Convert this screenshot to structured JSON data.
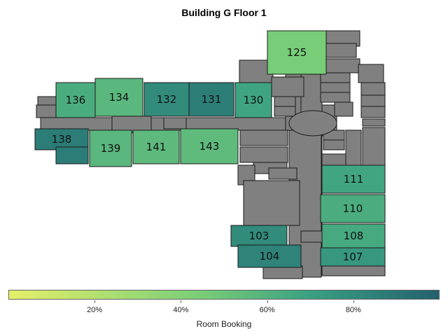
{
  "title": "Building G Floor 1",
  "colors": {
    "wall": "#808080",
    "outline": "#1a1a1a",
    "scale_low": "#e5f06a",
    "scale_mid": "#5cc07a",
    "scale_high": "#22616e"
  },
  "rooms": [
    {
      "id": "125",
      "label": "125",
      "booking": 0.45
    },
    {
      "id": "136",
      "label": "136",
      "booking": 0.63
    },
    {
      "id": "134",
      "label": "134",
      "booking": 0.57
    },
    {
      "id": "132",
      "label": "132",
      "booking": 0.8
    },
    {
      "id": "131",
      "label": "131",
      "booking": 0.86
    },
    {
      "id": "130",
      "label": "130",
      "booking": 0.68
    },
    {
      "id": "138",
      "label": "138",
      "booking": 0.87
    },
    {
      "id": "139",
      "label": "139",
      "booking": 0.57
    },
    {
      "id": "141",
      "label": "141",
      "booking": 0.56
    },
    {
      "id": "143",
      "label": "143",
      "booking": 0.55
    },
    {
      "id": "111",
      "label": "111",
      "booking": 0.67
    },
    {
      "id": "110",
      "label": "110",
      "booking": 0.63
    },
    {
      "id": "108",
      "label": "108",
      "booking": 0.65
    },
    {
      "id": "107",
      "label": "107",
      "booking": 0.74
    },
    {
      "id": "103",
      "label": "103",
      "booking": 0.8
    },
    {
      "id": "104",
      "label": "104",
      "booking": 0.84
    }
  ],
  "legend": {
    "title": "Room Booking",
    "ticks": [
      "20%",
      "40%",
      "60%",
      "80%"
    ],
    "tick_values": [
      0.2,
      0.4,
      0.6,
      0.8
    ]
  }
}
